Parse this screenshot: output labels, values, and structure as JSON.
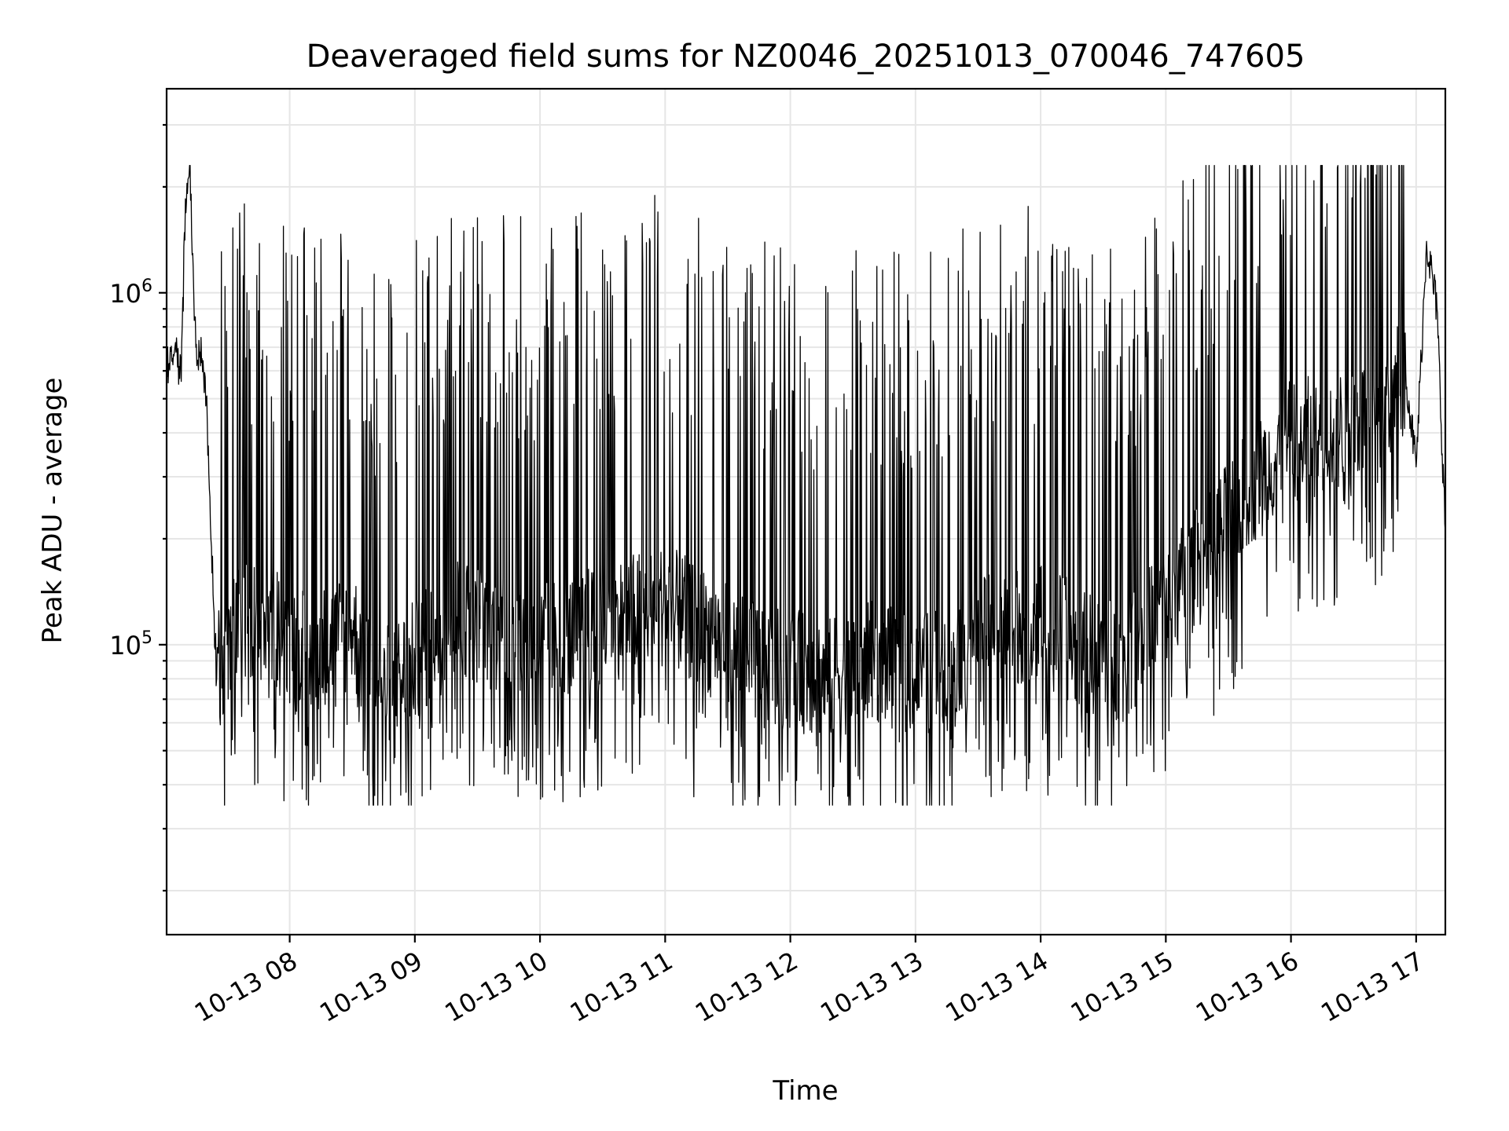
{
  "chart_data": {
    "type": "line",
    "title": "Deaveraged field sums for NZ0046_20251013_070046_747605",
    "xlabel": "Time",
    "ylabel": "Peak ADU - average",
    "xaxis": {
      "type": "datetime",
      "range": [
        "2025-10-13 07:01",
        "2025-10-13 17:14"
      ],
      "ticks": [
        "2025-10-13 08:00",
        "2025-10-13 09:00",
        "2025-10-13 10:00",
        "2025-10-13 11:00",
        "2025-10-13 12:00",
        "2025-10-13 13:00",
        "2025-10-13 14:00",
        "2025-10-13 15:00",
        "2025-10-13 16:00",
        "2025-10-13 17:00"
      ],
      "tick_labels": [
        "10-13 08",
        "10-13 09",
        "10-13 10",
        "10-13 11",
        "10-13 12",
        "10-13 13",
        "10-13 14",
        "10-13 15",
        "10-13 16",
        "10-13 17"
      ]
    },
    "yaxis": {
      "scale": "log",
      "range": [
        15000,
        3800000
      ],
      "major_ticks": [
        100000,
        1000000
      ],
      "major_tick_labels": [
        {
          "base": "10",
          "exp": "5"
        },
        {
          "base": "10",
          "exp": "6"
        }
      ]
    },
    "grid": true,
    "legend": "none",
    "line_color": "#000000",
    "series": [
      {
        "x": [
          "2025-10-13 07:01",
          "2025-10-13 07:05",
          "2025-10-13 07:08",
          "2025-10-13 07:10",
          "2025-10-13 07:12",
          "2025-10-13 07:15",
          "2025-10-13 07:18",
          "2025-10-13 07:20",
          "2025-10-13 07:22",
          "2025-10-13 07:25",
          "2025-10-13 07:30",
          "2025-10-13 07:40",
          "2025-10-13 07:55",
          "2025-10-13 08:10",
          "2025-10-13 08:30",
          "2025-10-13 08:45",
          "2025-10-13 09:00",
          "2025-10-13 09:20",
          "2025-10-13 09:40",
          "2025-10-13 10:00",
          "2025-10-13 10:20",
          "2025-10-13 10:40",
          "2025-10-13 11:00",
          "2025-10-13 11:20",
          "2025-10-13 11:40",
          "2025-10-13 12:00",
          "2025-10-13 12:20",
          "2025-10-13 12:40",
          "2025-10-13 13:00",
          "2025-10-13 13:20",
          "2025-10-13 13:40",
          "2025-10-13 14:00",
          "2025-10-13 14:20",
          "2025-10-13 14:40",
          "2025-10-13 15:00",
          "2025-10-13 15:20",
          "2025-10-13 15:40",
          "2025-10-13 16:00",
          "2025-10-13 16:20",
          "2025-10-13 16:40",
          "2025-10-13 16:55",
          "2025-10-13 17:00",
          "2025-10-13 17:05",
          "2025-10-13 17:10",
          "2025-10-13 17:14"
        ],
        "y": [
          620000,
          700000,
          560000,
          1850000,
          2300000,
          700000,
          650000,
          500000,
          220000,
          80000,
          100000,
          120000,
          110000,
          95000,
          110000,
          75000,
          90000,
          120000,
          110000,
          100000,
          110000,
          120000,
          130000,
          110000,
          90000,
          85000,
          80000,
          90000,
          80000,
          95000,
          110000,
          120000,
          95000,
          90000,
          130000,
          180000,
          280000,
          380000,
          400000,
          450000,
          600000,
          320000,
          1400000,
          900000,
          210000
        ]
      }
    ]
  }
}
